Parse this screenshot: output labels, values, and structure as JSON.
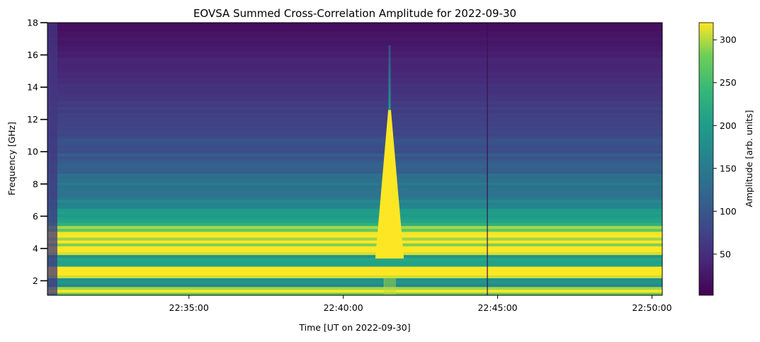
{
  "chart_data": {
    "type": "heatmap",
    "title": "EOVSA Summed Cross-Correlation Amplitude for 2022-09-30",
    "xlabel": "Time [UT on 2022-09-30]",
    "ylabel": "Frequency [GHz]",
    "x_ticks": [
      "22:35:00",
      "22:40:00",
      "22:45:00",
      "22:50:00"
    ],
    "y_ticks": [
      2,
      4,
      6,
      8,
      10,
      12,
      14,
      16,
      18
    ],
    "xlim": [
      "22:30:25",
      "22:50:20"
    ],
    "ylim": [
      1.1,
      18
    ],
    "colorbar": {
      "label": "Amplitude [arb. units]",
      "ticks": [
        50,
        100,
        150,
        200,
        250,
        300
      ],
      "range": [
        2,
        320
      ],
      "colormap": "viridis"
    },
    "features": {
      "burst_peak_time": "22:41:30",
      "burst_peak_top_ghz": 12.5,
      "gap_line_time": "22:44:40",
      "bright_band_ghz": [
        2.2,
        5.5
      ]
    }
  }
}
